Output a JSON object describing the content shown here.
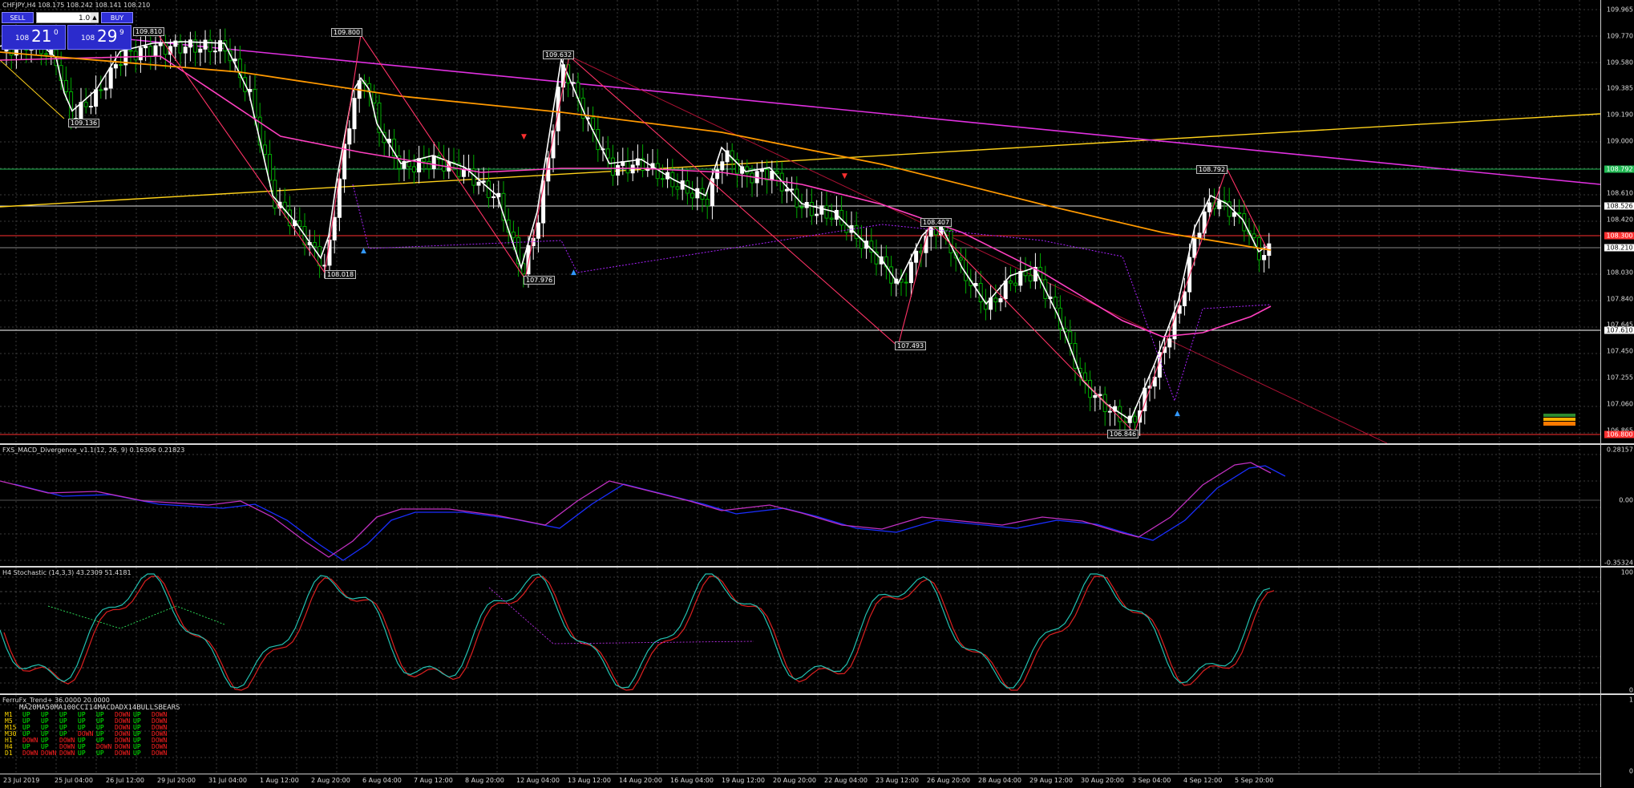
{
  "symbol_header": "CHFJPY,H4  108.175 108.242 108.141 108.210",
  "trade_panel": {
    "sell_label": "SELL",
    "buy_label": "BUY",
    "lot_value": "1.00",
    "sell_quote": {
      "prefix": "108",
      "big": "21",
      "sup": "0"
    },
    "buy_quote": {
      "prefix": "108",
      "big": "29",
      "sup": "9"
    }
  },
  "price_axis_labels": [
    "109.965",
    "109.770",
    "109.580",
    "109.385",
    "109.190",
    "109.000",
    "108.610",
    "108.420",
    "108.030",
    "107.840",
    "107.645",
    "107.450",
    "107.255",
    "107.060",
    "106.865"
  ],
  "price_tags": [
    {
      "value": "108.792",
      "color": "#22bb55"
    },
    {
      "value": "108.526",
      "color": "#ffffff"
    },
    {
      "value": "108.300",
      "color": "#ff3030"
    },
    {
      "value": "108.210",
      "color": "#ffffff"
    },
    {
      "value": "107.610",
      "color": "#ffffff"
    },
    {
      "value": "106.800",
      "color": "#ff3030"
    }
  ],
  "zigzag_labels": [
    "109.810",
    "109.800",
    "109.632",
    "109.136",
    "108.018",
    "107.976",
    "108.407",
    "107.493",
    "108.792",
    "106.846"
  ],
  "macd_title": "FXS_MACD_Divergence_v1.1(12, 26, 9) 0.16306 0.21823",
  "macd_axis": [
    "0.28157",
    "0.00",
    "-0.35324"
  ],
  "stoch_title": "H4 Stochastic (14,3,3) 43.2309 51.4181",
  "stoch_axis": [
    "100",
    "0"
  ],
  "trend_title": "FerruFx_Trend+ 36.0000 20.0000",
  "trend_axis": [
    "1",
    "0"
  ],
  "trend_table": {
    "columns": [
      "MA20",
      "MA50",
      "MA100",
      "CCI14",
      "MACD",
      "ADX14",
      "BULLS",
      "BEARS"
    ],
    "rows": [
      {
        "tf": "M1",
        "values": [
          "UP",
          "UP",
          "UP",
          "UP",
          "UP",
          "DOWN",
          "UP",
          "DOWN"
        ]
      },
      {
        "tf": "M5",
        "values": [
          "UP",
          "UP",
          "UP",
          "UP",
          "UP",
          "DOWN",
          "UP",
          "DOWN"
        ]
      },
      {
        "tf": "M15",
        "values": [
          "UP",
          "UP",
          "UP",
          "UP",
          "UP",
          "DOWN",
          "UP",
          "DOWN"
        ]
      },
      {
        "tf": "M30",
        "values": [
          "UP",
          "UP",
          "UP",
          "DOWN",
          "UP",
          "DOWN",
          "UP",
          "DOWN"
        ]
      },
      {
        "tf": "H1",
        "values": [
          "DOWN",
          "UP",
          "DOWN",
          "UP",
          "UP",
          "DOWN",
          "UP",
          "DOWN"
        ]
      },
      {
        "tf": "H4",
        "values": [
          "UP",
          "UP",
          "DOWN",
          "UP",
          "DOWN",
          "DOWN",
          "UP",
          "DOWN"
        ]
      },
      {
        "tf": "D1",
        "values": [
          "DOWN",
          "DOWN",
          "DOWN",
          "UP",
          "UP",
          "DOWN",
          "UP",
          "DOWN"
        ]
      }
    ]
  },
  "time_axis": [
    "23 Jul 2019",
    "25 Jul 04:00",
    "26 Jul 12:00",
    "29 Jul 20:00",
    "31 Jul 04:00",
    "1 Aug 12:00",
    "2 Aug 20:00",
    "6 Aug 04:00",
    "7 Aug 12:00",
    "8 Aug 20:00",
    "12 Aug 04:00",
    "13 Aug 12:00",
    "14 Aug 20:00",
    "16 Aug 04:00",
    "19 Aug 12:00",
    "20 Aug 20:00",
    "22 Aug 04:00",
    "23 Aug 12:00",
    "26 Aug 20:00",
    "28 Aug 04:00",
    "29 Aug 12:00",
    "30 Aug 20:00",
    "3 Sep 04:00",
    "4 Sep 12:00",
    "5 Sep 20:00"
  ],
  "colors": {
    "bull": "#ffffff",
    "bear": "#00aa00",
    "ma_fast": "#ffffff",
    "ma_mid": "#ff40c0",
    "ma_slow": "#ff9900",
    "trend_line": "#ffd21a",
    "channel": "#e030e0",
    "zigzag": "#ff3366"
  }
}
